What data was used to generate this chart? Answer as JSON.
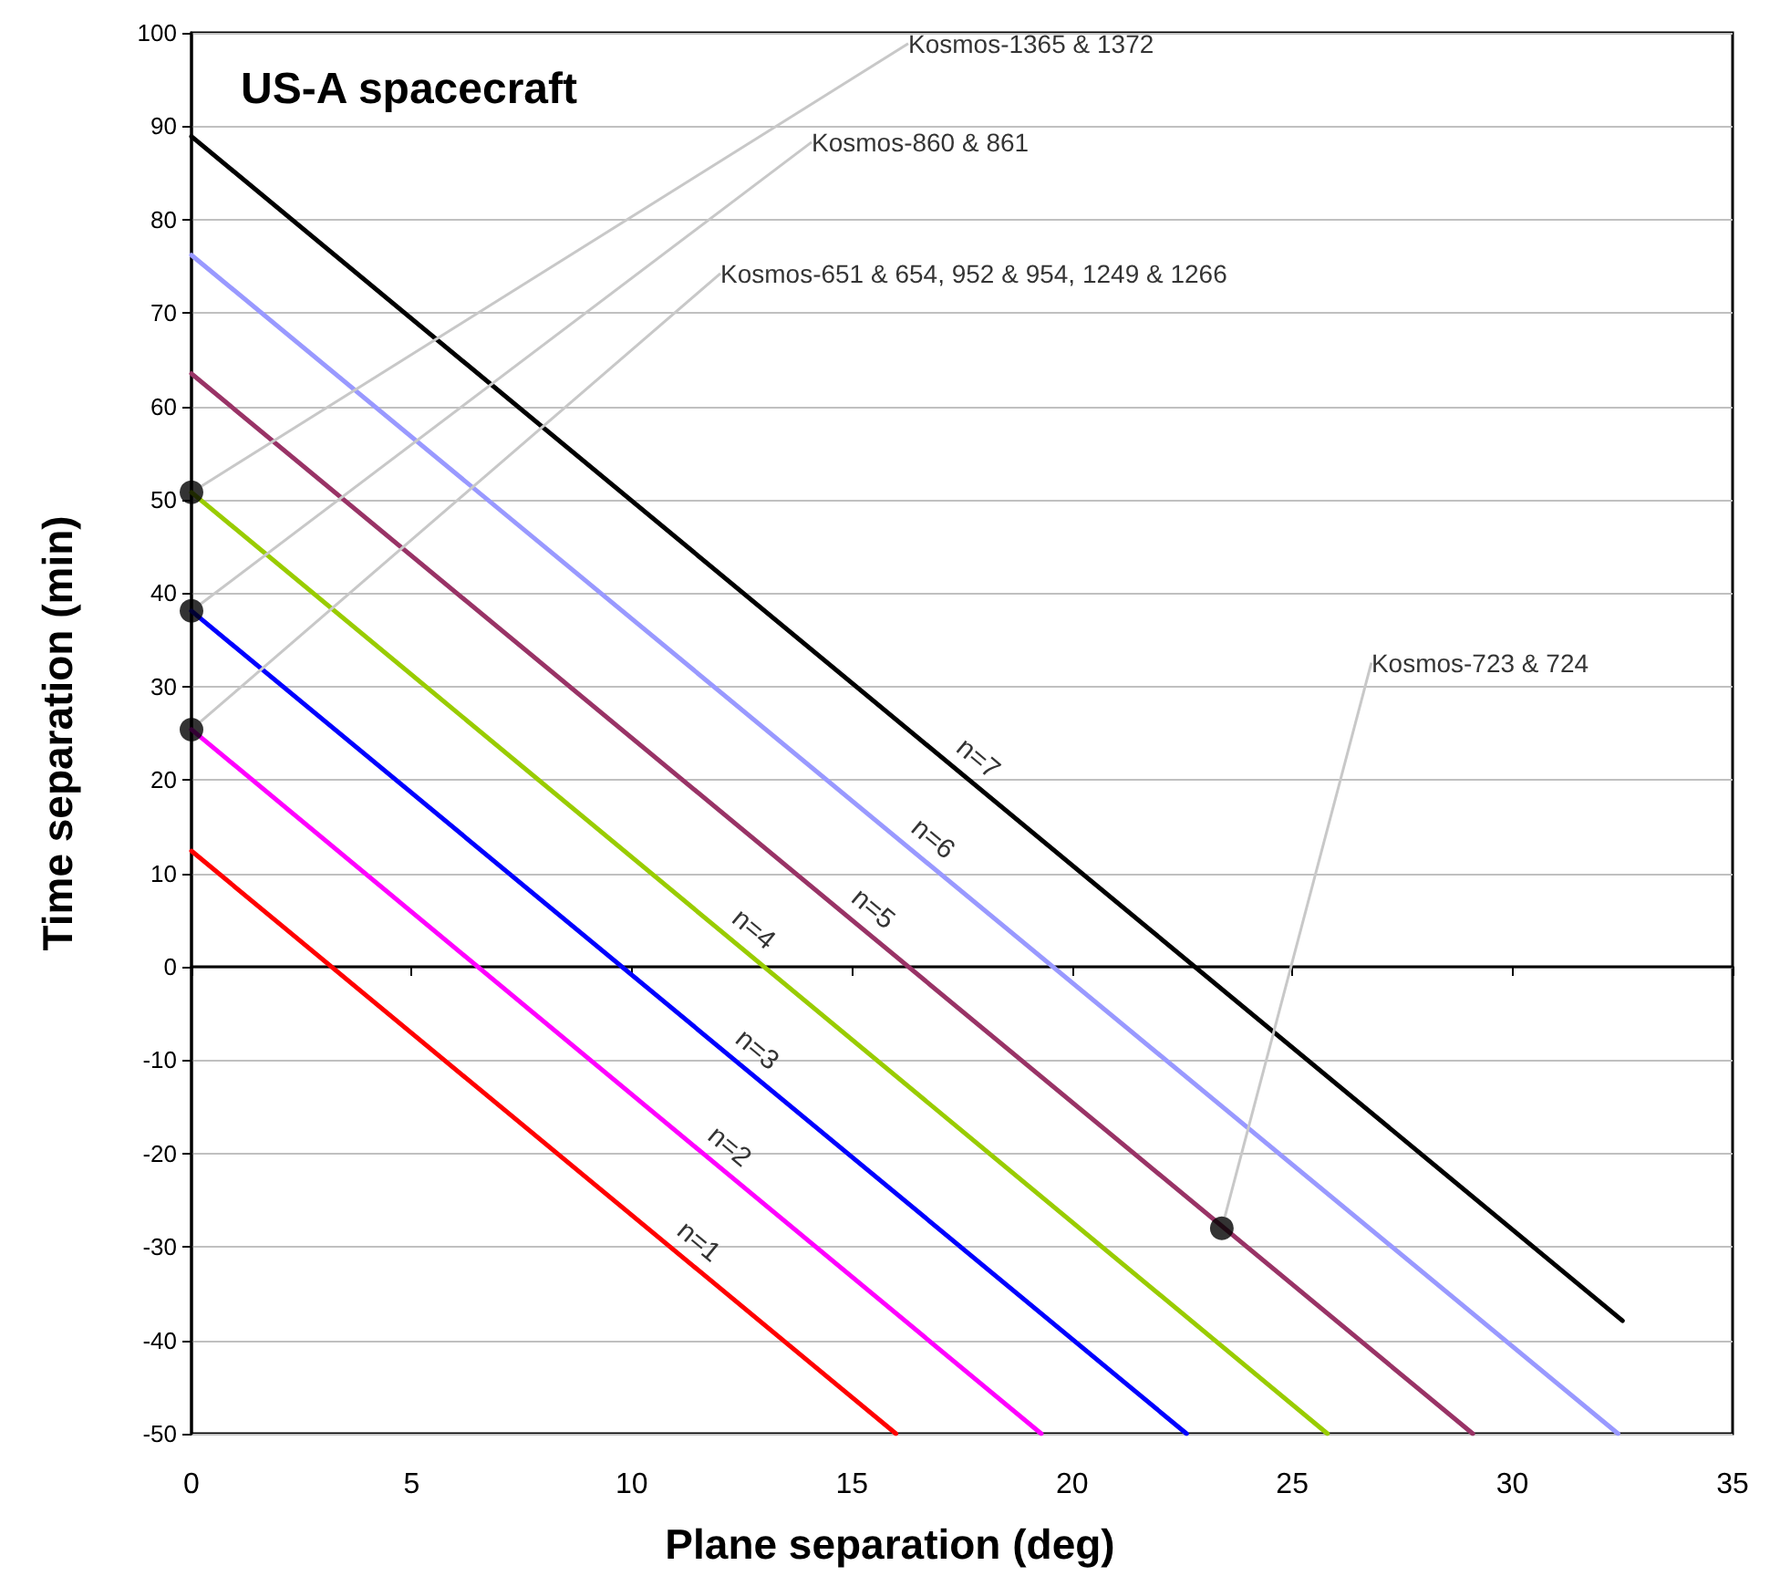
{
  "chart_data": {
    "type": "line",
    "title": "US-A spacecraft",
    "xlabel": "Plane separation (deg)",
    "ylabel": "Time separation (min)",
    "xlim": [
      0,
      35
    ],
    "xticks": [
      0,
      5,
      10,
      15,
      20,
      25,
      30,
      35
    ],
    "ylim": [
      -50,
      100
    ],
    "yticks": [
      -50,
      -40,
      -30,
      -20,
      -10,
      0,
      10,
      20,
      30,
      40,
      50,
      60,
      70,
      80,
      90,
      100
    ],
    "grid": "y",
    "legend": false,
    "series": [
      {
        "name": "n=1",
        "color": "#ff0000",
        "x": [
          0,
          16.0
        ],
        "values": [
          12.4,
          -50
        ]
      },
      {
        "name": "n=2",
        "color": "#ff00ff",
        "x": [
          0,
          19.3
        ],
        "values": [
          25.4,
          -50
        ]
      },
      {
        "name": "n=3",
        "color": "#0000ff",
        "x": [
          0,
          22.6
        ],
        "values": [
          38.1,
          -50
        ]
      },
      {
        "name": "n=4",
        "color": "#99cc00",
        "x": [
          0,
          25.8
        ],
        "values": [
          50.8,
          -50
        ]
      },
      {
        "name": "n=5",
        "color": "#993366",
        "x": [
          0,
          29.1
        ],
        "values": [
          63.5,
          -50
        ]
      },
      {
        "name": "n=6",
        "color": "#9999ff",
        "x": [
          0,
          32.4
        ],
        "values": [
          76.2,
          -50
        ]
      },
      {
        "name": "n=7",
        "color": "#000000",
        "x": [
          0,
          32.5
        ],
        "values": [
          88.9,
          -37.9
        ]
      },
      {
        "type": "scatter",
        "color": "#000000",
        "marker": "circle",
        "x": [
          0,
          0,
          0,
          23.4
        ],
        "values": [
          50.8,
          38.1,
          25.4,
          -28
        ]
      }
    ],
    "annotations": [
      "Kosmos-1365 & 1372",
      "Kosmos-860 & 861",
      "Kosmos-651 & 654, 952 & 954, 1249 & 1266",
      {
        "text": "Kosmos-723 & 724",
        "x": 23.4,
        "y": -28
      }
    ]
  }
}
